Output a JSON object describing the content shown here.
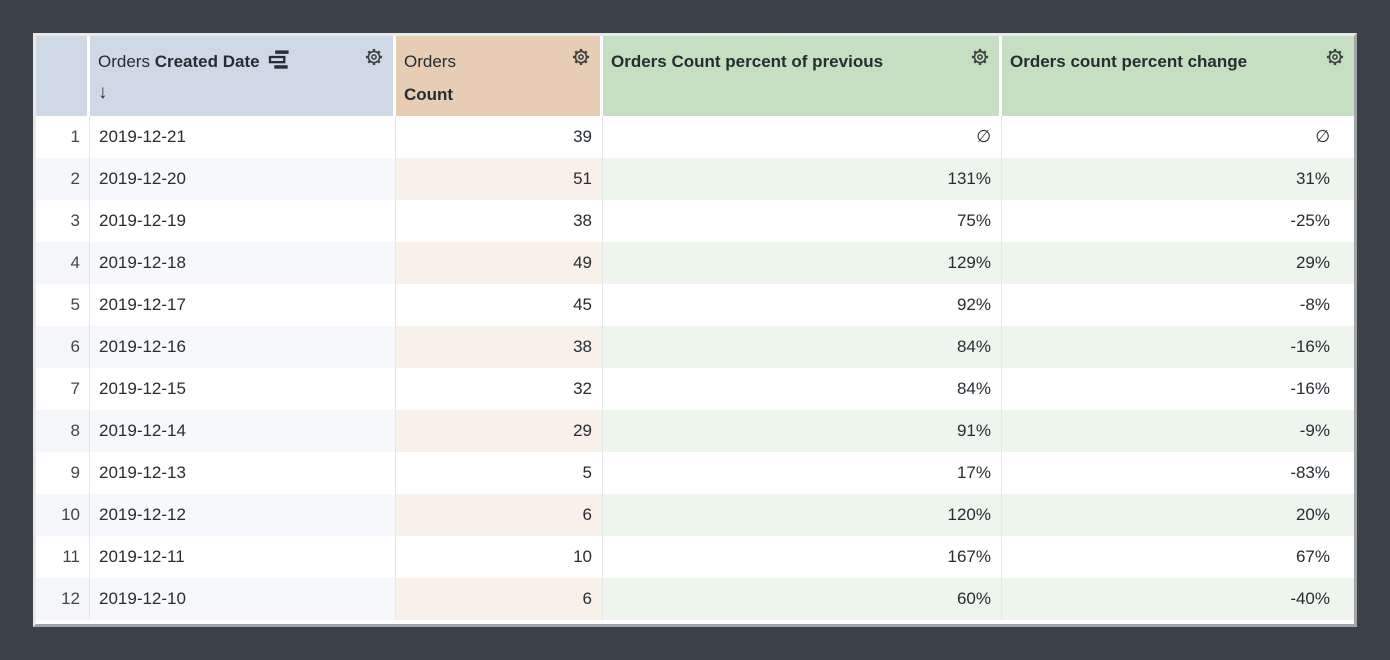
{
  "table": {
    "headers": {
      "row_number": {
        "label": ""
      },
      "date": {
        "view": "Orders",
        "field": "Created Date",
        "sort_arrow": "↓",
        "sort": "descending"
      },
      "count": {
        "view": "Orders",
        "field": "Count"
      },
      "pct_prev": {
        "label": "Orders Count percent of previous"
      },
      "pct_change": {
        "label": "Orders count percent change"
      }
    },
    "rows": [
      {
        "n": "1",
        "date": "2019-12-21",
        "count": "39",
        "pct_prev": "∅",
        "pct_change": "∅"
      },
      {
        "n": "2",
        "date": "2019-12-20",
        "count": "51",
        "pct_prev": "131%",
        "pct_change": "31%"
      },
      {
        "n": "3",
        "date": "2019-12-19",
        "count": "38",
        "pct_prev": "75%",
        "pct_change": "-25%"
      },
      {
        "n": "4",
        "date": "2019-12-18",
        "count": "49",
        "pct_prev": "129%",
        "pct_change": "29%"
      },
      {
        "n": "5",
        "date": "2019-12-17",
        "count": "45",
        "pct_prev": "92%",
        "pct_change": "-8%"
      },
      {
        "n": "6",
        "date": "2019-12-16",
        "count": "38",
        "pct_prev": "84%",
        "pct_change": "-16%"
      },
      {
        "n": "7",
        "date": "2019-12-15",
        "count": "32",
        "pct_prev": "84%",
        "pct_change": "-16%"
      },
      {
        "n": "8",
        "date": "2019-12-14",
        "count": "29",
        "pct_prev": "91%",
        "pct_change": "-9%"
      },
      {
        "n": "9",
        "date": "2019-12-13",
        "count": "5",
        "pct_prev": "17%",
        "pct_change": "-83%"
      },
      {
        "n": "10",
        "date": "2019-12-12",
        "count": "6",
        "pct_prev": "120%",
        "pct_change": "20%"
      },
      {
        "n": "11",
        "date": "2019-12-11",
        "count": "10",
        "pct_prev": "167%",
        "pct_change": "67%"
      },
      {
        "n": "12",
        "date": "2019-12-10",
        "count": "6",
        "pct_prev": "60%",
        "pct_change": "-40%"
      }
    ],
    "null_symbol": "∅"
  },
  "colors": {
    "dimension_header": "#cfd9e5",
    "measure_header": "#e6cdb3",
    "calculation_header": "#c6dfc2",
    "dimension_row_tint": "#f7f8fb",
    "measure_row_tint": "#f7f1ea",
    "calculation_row_tint": "#eef5ec",
    "page_background": "#3b4147",
    "text": "#262d33"
  }
}
